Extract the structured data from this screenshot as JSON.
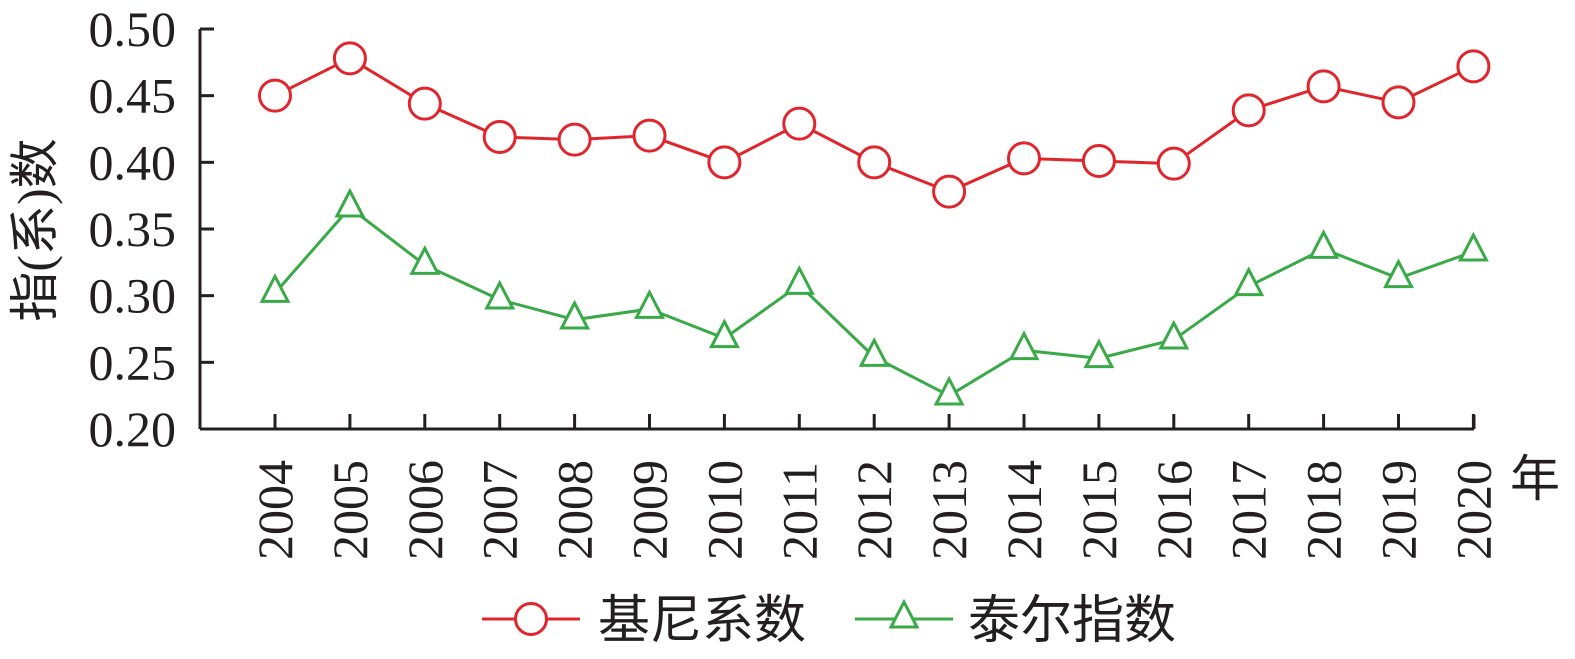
{
  "chart_data": {
    "type": "line",
    "title": "",
    "xlabel": "年",
    "ylabel": "指(系)数",
    "ylim": [
      0.2,
      0.5
    ],
    "yticks": [
      "0.20",
      "0.25",
      "0.30",
      "0.35",
      "0.40",
      "0.45",
      "0.50"
    ],
    "x": [
      "2004",
      "2005",
      "2006",
      "2007",
      "2008",
      "2009",
      "2010",
      "2011",
      "2012",
      "2013",
      "2014",
      "2015",
      "2016",
      "2017",
      "2018",
      "2019",
      "2020"
    ],
    "series": [
      {
        "name": "基尼系数",
        "marker": "circle",
        "color": "#e0262c",
        "values": [
          0.45,
          0.478,
          0.444,
          0.419,
          0.417,
          0.42,
          0.4,
          0.429,
          0.4,
          0.378,
          0.403,
          0.401,
          0.399,
          0.439,
          0.457,
          0.445,
          0.472
        ]
      },
      {
        "name": "泰尔指数",
        "marker": "triangle",
        "color": "#3aaa48",
        "values": [
          0.302,
          0.366,
          0.323,
          0.297,
          0.282,
          0.29,
          0.268,
          0.308,
          0.254,
          0.225,
          0.259,
          0.253,
          0.267,
          0.307,
          0.335,
          0.313,
          0.333
        ]
      }
    ],
    "grid": false,
    "legend_position": "bottom"
  },
  "legend": {
    "items": [
      {
        "label": "基尼系数",
        "color": "#e0262c",
        "marker": "circle"
      },
      {
        "label": "泰尔指数",
        "color": "#3aaa48",
        "marker": "triangle"
      }
    ]
  },
  "axes": {
    "y_title": "指(系)数",
    "x_unit": "年"
  }
}
